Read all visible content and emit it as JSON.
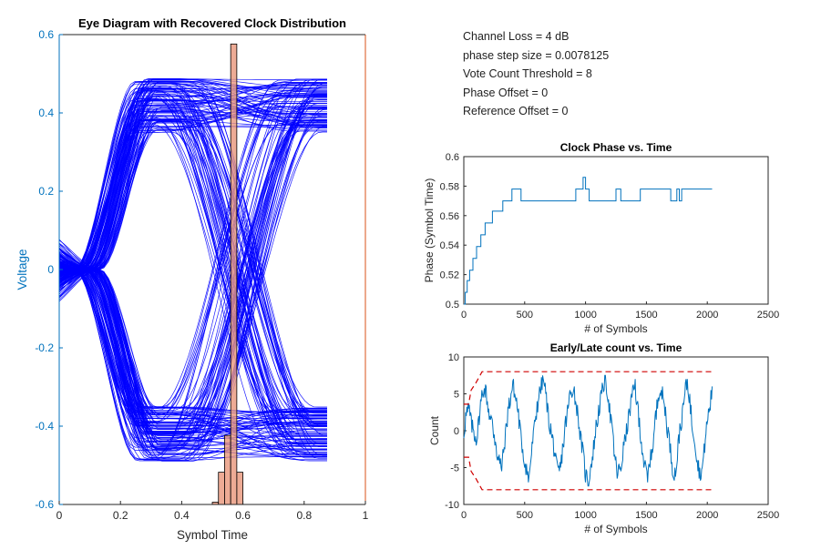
{
  "annotations": {
    "channel_loss": "Channel Loss = 4 dB",
    "phase_step": "phase step size = 0.0078125",
    "vote_threshold": "Vote Count Threshold = 8",
    "phase_offset": "Phase Offset = 0",
    "reference_offset": "Reference Offset = 0"
  },
  "colors": {
    "eye_trace": "#0000ff",
    "histogram_bar": "#e9967a",
    "axis_left": "#0072bd",
    "axis_right": "#d95319",
    "series_line": "#0072bd",
    "threshold": "#d00000"
  },
  "chart_data": [
    {
      "type": "line",
      "title": "Eye Diagram with Recovered Clock Distribution",
      "xlabel": "Symbol Time",
      "ylabel": "Voltage",
      "xlim": [
        0,
        1
      ],
      "ylim": [
        -0.6,
        0.6
      ],
      "xticks": [
        "0",
        "0.2",
        "0.4",
        "0.6",
        "0.8",
        "1"
      ],
      "yticks": [
        "-0.6",
        "-0.4",
        "-0.2",
        "0",
        "0.2",
        "0.4",
        "0.6"
      ],
      "eye_span": [
        0,
        0.875
      ],
      "levels": [
        0.42,
        -0.42
      ],
      "crossing_time": 0.09,
      "trace_count": 220,
      "histogram": {
        "bin_width": 0.02,
        "bins": [
          0.5,
          0.52,
          0.54,
          0.56,
          0.58
        ],
        "values": [
          0.005,
          0.07,
          0.15,
          1.0,
          0.07
        ]
      }
    },
    {
      "type": "line",
      "title": "Clock Phase vs. Time",
      "xlabel": "# of Symbols",
      "ylabel": "Phase (Symbol Time)",
      "xlim": [
        0,
        2500
      ],
      "ylim": [
        0.5,
        0.6
      ],
      "xticks": [
        "0",
        "500",
        "1000",
        "1500",
        "2000",
        "2500"
      ],
      "yticks": [
        "0.5",
        "0.52",
        "0.54",
        "0.56",
        "0.58",
        "0.6"
      ],
      "series": [
        {
          "name": "phase",
          "x": [
            0,
            12,
            12,
            28,
            28,
            48,
            48,
            75,
            75,
            105,
            105,
            140,
            140,
            175,
            175,
            235,
            235,
            320,
            320,
            395,
            395,
            470,
            470,
            490,
            490,
            920,
            920,
            980,
            980,
            1000,
            1000,
            1030,
            1030,
            1250,
            1250,
            1265,
            1265,
            1290,
            1290,
            1360,
            1360,
            1450,
            1450,
            1700,
            1700,
            1750,
            1750,
            1770,
            1770,
            1790,
            1790,
            1955,
            1955,
            2040
          ],
          "y": [
            0.5,
            0.5,
            0.508,
            0.508,
            0.516,
            0.516,
            0.523,
            0.523,
            0.531,
            0.531,
            0.539,
            0.539,
            0.547,
            0.547,
            0.555,
            0.555,
            0.563,
            0.563,
            0.57,
            0.57,
            0.578,
            0.578,
            0.57,
            0.57,
            0.57,
            0.57,
            0.578,
            0.578,
            0.586,
            0.586,
            0.578,
            0.578,
            0.57,
            0.57,
            0.578,
            0.578,
            0.578,
            0.578,
            0.57,
            0.57,
            0.57,
            0.57,
            0.578,
            0.578,
            0.57,
            0.57,
            0.578,
            0.578,
            0.57,
            0.57,
            0.578,
            0.578,
            0.578,
            0.578
          ]
        }
      ]
    },
    {
      "type": "line",
      "title": "Early/Late count vs. Time",
      "xlabel": "# of Symbols",
      "ylabel": "Count",
      "xlim": [
        0,
        2500
      ],
      "ylim": [
        -10,
        10
      ],
      "xticks": [
        "0",
        "500",
        "1000",
        "1500",
        "2000",
        "2500"
      ],
      "yticks": [
        "-10",
        "-5",
        "0",
        "5",
        "10"
      ],
      "threshold": 8,
      "x_end": 2040,
      "series": [
        {
          "name": "count",
          "values": [
            0,
            2,
            3,
            1,
            0,
            -1,
            1,
            4,
            6,
            5,
            3,
            1,
            0,
            -2,
            -4,
            -5,
            -3,
            0,
            3,
            5,
            6,
            4,
            2,
            -1,
            -3,
            -5,
            -7,
            -4,
            -1,
            2,
            4,
            6,
            7,
            5,
            2,
            0,
            -2,
            -4,
            -6,
            -5,
            -2,
            1,
            3,
            5,
            6,
            4,
            2,
            -1,
            -3,
            -6,
            -7,
            -5,
            -3,
            0,
            2,
            4,
            6,
            7,
            5,
            2,
            -1,
            -4,
            -6,
            -5,
            -3,
            -1,
            1,
            3,
            5,
            6,
            3,
            0,
            -3,
            -5,
            -7,
            -4,
            -2,
            1,
            4,
            6,
            5,
            3,
            0,
            -2,
            -5,
            -6,
            -3,
            0,
            2,
            5,
            7,
            4,
            1,
            -1,
            -4,
            -6,
            -5,
            -2,
            1,
            3,
            6
          ]
        }
      ]
    }
  ]
}
